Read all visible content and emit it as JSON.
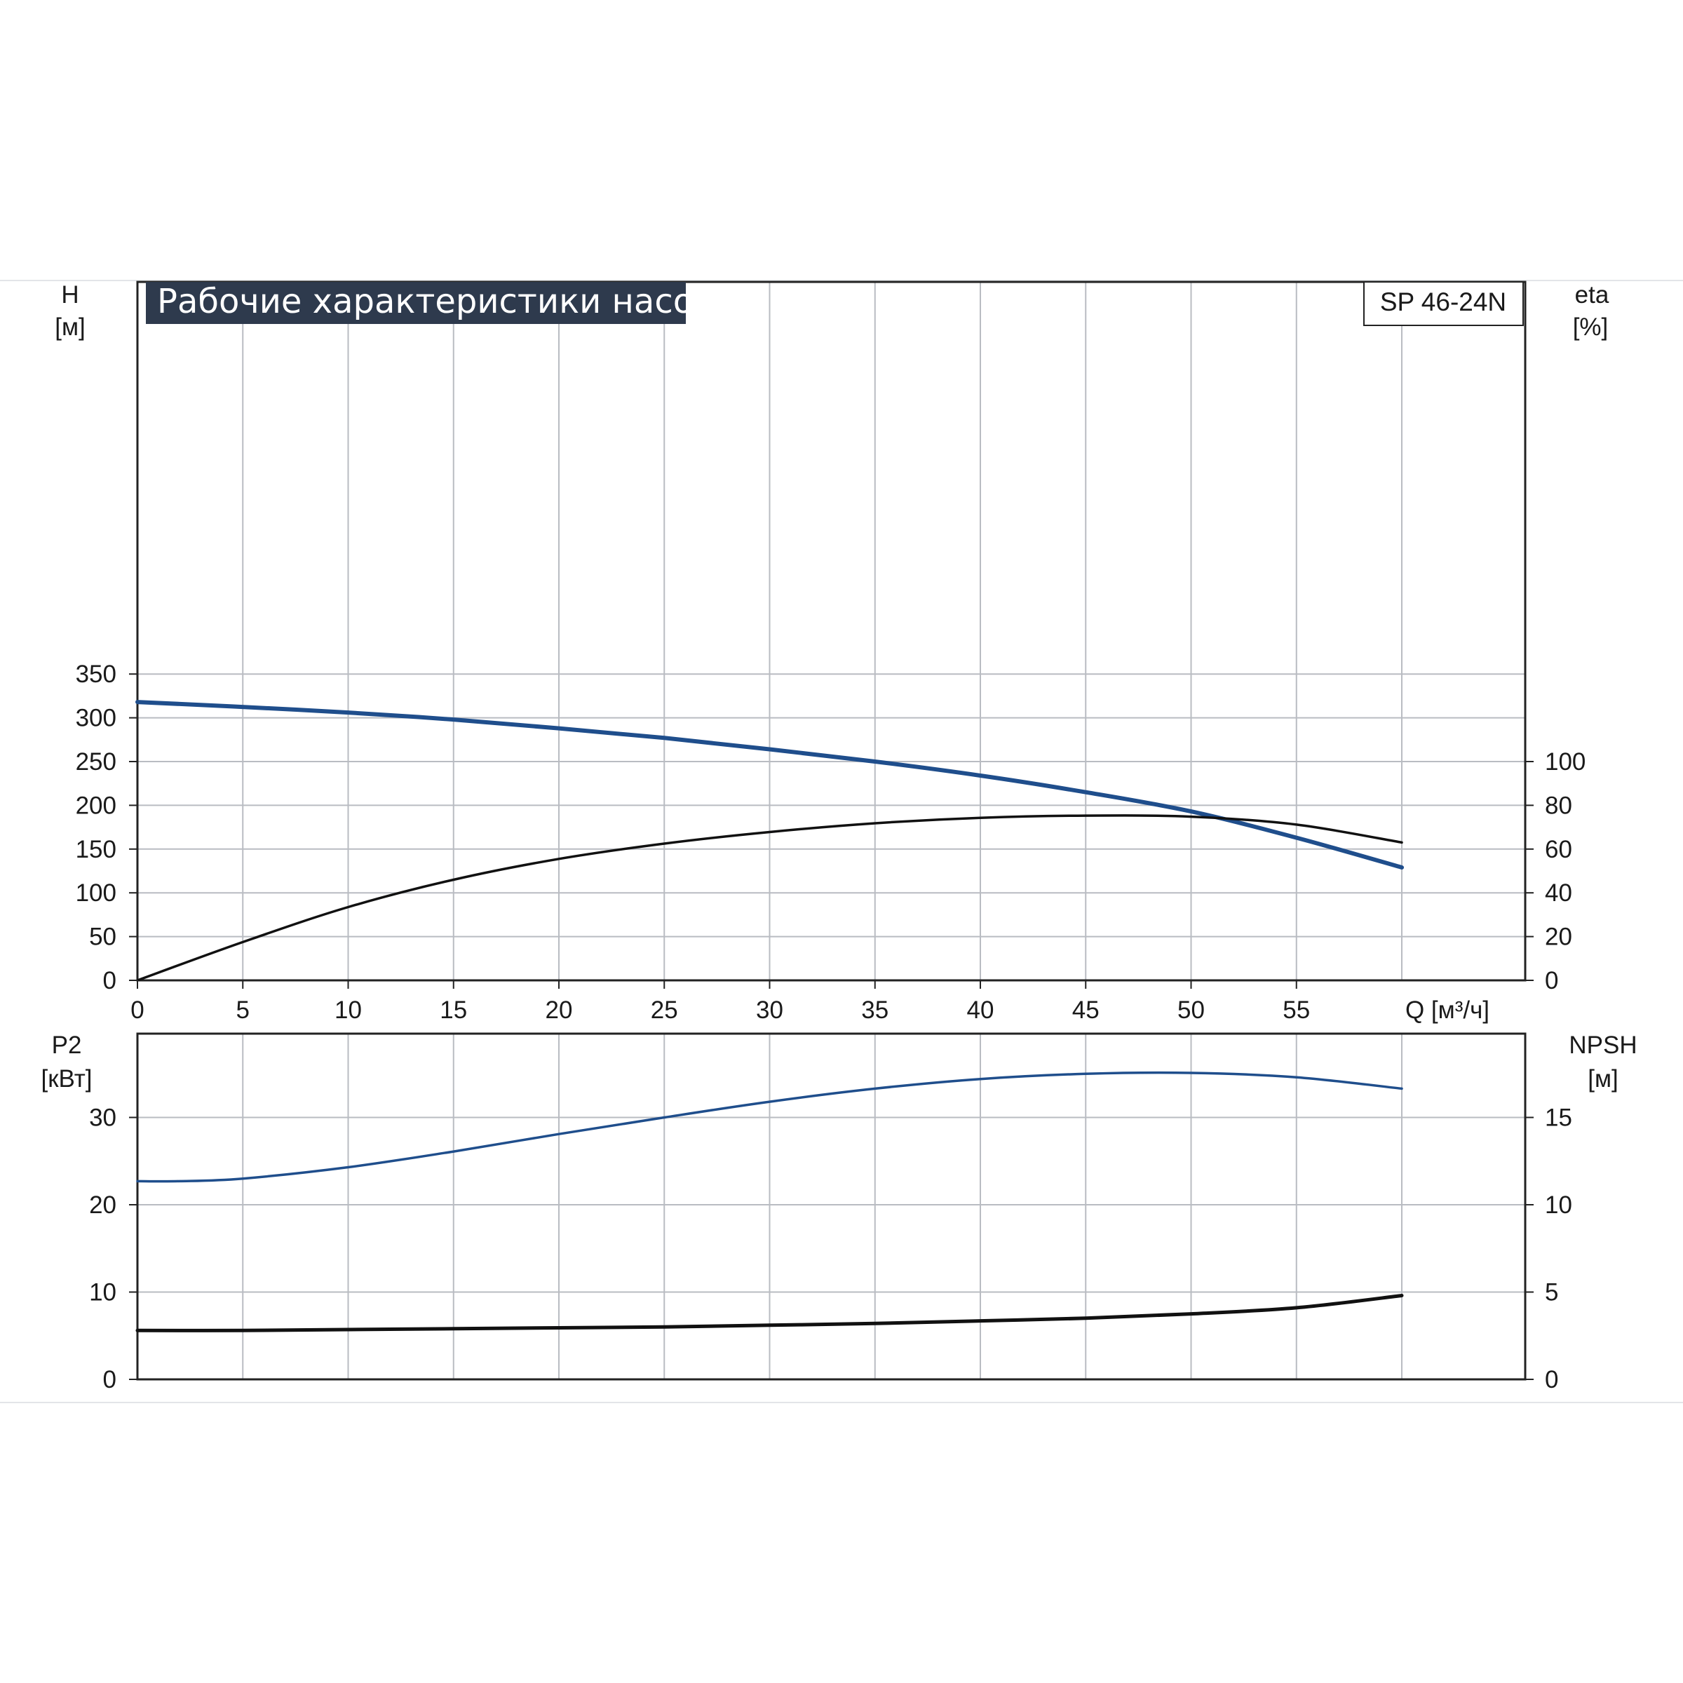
{
  "title": "Рабочие характеристики насоса",
  "model": "SP 46-24N",
  "colors": {
    "head_curve": "#1f4e8c",
    "efficiency_curve": "#111111",
    "power_curve": "#1f4e8c",
    "npsh_curve": "#111111",
    "title_bg": "#2e3a4d",
    "grid": "#b9bcc2"
  },
  "chart_data": [
    {
      "type": "line",
      "name": "performance",
      "xlabel": "Q [м³/ч]",
      "ylabel": [
        "H",
        "[м]"
      ],
      "ylabel_right": [
        "eta",
        "[%]"
      ],
      "xlim": [
        0,
        60
      ],
      "ylim": [
        0,
        350
      ],
      "ylim_right": [
        0,
        140
      ],
      "x_ticks": [
        "0",
        "5",
        "10",
        "15",
        "20",
        "25",
        "30",
        "35",
        "40",
        "45",
        "50",
        "55"
      ],
      "y_ticks": [
        "0",
        "50",
        "100",
        "150",
        "200",
        "250",
        "300",
        "350"
      ],
      "y_right_ticks": [
        "0",
        "20",
        "40",
        "60",
        "80",
        "100"
      ],
      "grid": true,
      "series": [
        {
          "key": "head",
          "axis": "left",
          "x": [
            0,
            4.5,
            10,
            15,
            20,
            25,
            30,
            35,
            40,
            45,
            50,
            55,
            60
          ],
          "y": [
            318,
            313,
            306,
            298,
            288,
            277,
            264,
            250,
            234,
            215,
            193,
            163,
            129
          ]
        },
        {
          "key": "efficiency",
          "axis": "right",
          "x": [
            0,
            5,
            10,
            15,
            20,
            25,
            30,
            35,
            40,
            45,
            50,
            55,
            60
          ],
          "y": [
            0,
            17.5,
            33.5,
            46,
            55.5,
            62.5,
            67.8,
            71.8,
            74.3,
            75.3,
            74.8,
            71.2,
            63
          ]
        }
      ]
    },
    {
      "type": "line",
      "name": "power-npsh",
      "ylabel": [
        "P2",
        "[кВт]"
      ],
      "ylabel_right": [
        "NPSH",
        "[м]"
      ],
      "xlim": [
        0,
        60
      ],
      "ylim": [
        0,
        40
      ],
      "ylim_right": [
        0,
        20
      ],
      "y_ticks": [
        "0",
        "10",
        "20",
        "30"
      ],
      "y_right_ticks": [
        "0",
        "5",
        "10",
        "15"
      ],
      "grid": true,
      "series": [
        {
          "key": "power",
          "axis": "left",
          "x": [
            0,
            2,
            5,
            10,
            15,
            20,
            25,
            30,
            35,
            40,
            45,
            50,
            55,
            60
          ],
          "y": [
            22.7,
            22.7,
            23.0,
            24.3,
            26.1,
            28.1,
            30.0,
            31.8,
            33.3,
            34.4,
            35.0,
            35.1,
            34.6,
            33.3
          ]
        },
        {
          "key": "npsh",
          "axis": "right",
          "x": [
            0,
            5,
            10,
            15,
            20,
            25,
            30,
            35,
            40,
            45,
            50,
            55,
            60
          ],
          "y": [
            2.8,
            2.8,
            2.85,
            2.9,
            2.95,
            3.0,
            3.1,
            3.2,
            3.35,
            3.5,
            3.75,
            4.1,
            4.8
          ]
        }
      ]
    }
  ]
}
